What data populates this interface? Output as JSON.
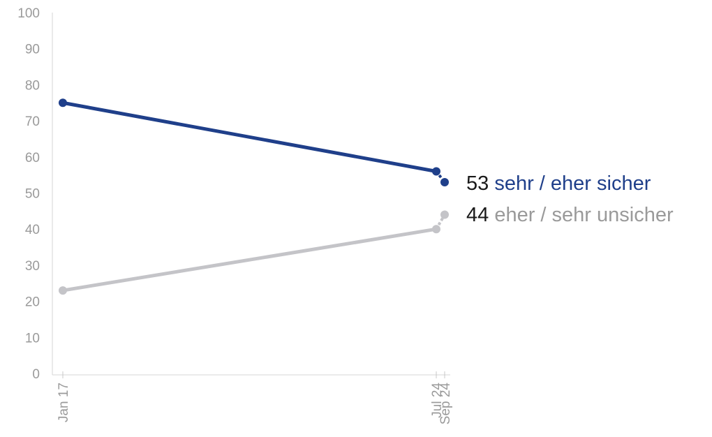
{
  "chart_data": {
    "type": "line",
    "x": [
      "Jan 17",
      "Jul 24",
      "Sep 24"
    ],
    "ylim": [
      0,
      100
    ],
    "yticks": [
      0,
      10,
      20,
      30,
      40,
      50,
      60,
      70,
      80,
      90,
      100
    ],
    "grid": false,
    "legend": "inline labels at line ends (right)",
    "series": [
      {
        "name": "sehr / eher sicher",
        "values": [
          75,
          56,
          53
        ],
        "end_value": "53",
        "color": "#1f3f8a"
      },
      {
        "name": "eher / sehr unsicher",
        "values": [
          23,
          40,
          44
        ],
        "end_value": "44",
        "color": "#c4c4c8",
        "label_color": "#9a9a9a"
      }
    ]
  }
}
